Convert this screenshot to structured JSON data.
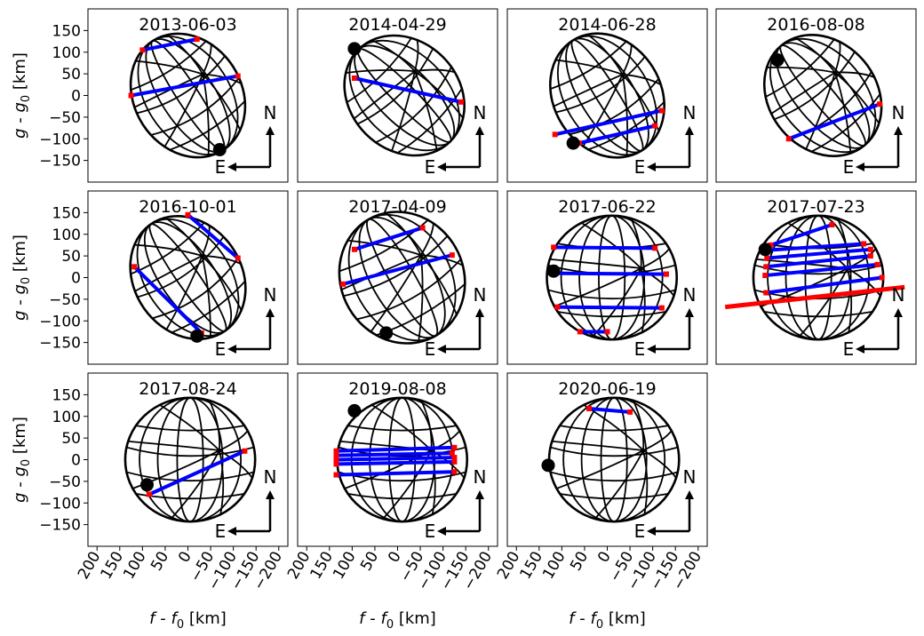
{
  "figure": {
    "ylabel_parts": {
      "v": "g",
      "mid": " - ",
      "v0": "g",
      "sub": "0",
      "unit": " [km]"
    },
    "xlabel_parts": {
      "v": "f",
      "mid": " - ",
      "v0": "f",
      "sub": "0",
      "unit": " [km]"
    },
    "compass": {
      "north": "N",
      "east": "E"
    }
  },
  "chart_data": {
    "type": "scatter",
    "description_units": "km",
    "xlim": [
      220,
      -220
    ],
    "ylim": [
      -200,
      200
    ],
    "xticks": [
      200,
      150,
      100,
      50,
      0,
      -50,
      -100,
      -150,
      -200
    ],
    "xtick_labels": [
      "200",
      "150",
      "100",
      "50",
      "0",
      "−50",
      "−100",
      "−150",
      "−200"
    ],
    "yticks": [
      150,
      100,
      50,
      0,
      -50,
      -100,
      -150
    ],
    "ytick_labels": [
      "150",
      "100",
      "50",
      "0",
      "−50",
      "−100",
      "−150"
    ],
    "colors": {
      "outline": "#000000",
      "chord": "#0000ff",
      "chord_end": "#ff0000",
      "pole": "#000000"
    },
    "panels": [
      {
        "title": "2013-06-03",
        "a": 118,
        "b": 150,
        "rot": 33,
        "pole": [
          -70,
          -125
        ],
        "center": [
          0,
          0
        ],
        "chords": [
          [
            100,
            105,
            -20,
            130
          ],
          [
            125,
            0,
            -110,
            45
          ]
        ],
        "grazing": []
      },
      {
        "title": "2014-04-29",
        "a": 120,
        "b": 150,
        "rot": 45,
        "pole": [
          95,
          108
        ],
        "center": [
          -15,
          0
        ],
        "chords": [
          [
            95,
            40,
            -140,
            -15
          ]
        ],
        "grazing": []
      },
      {
        "title": "2014-06-28",
        "a": 118,
        "b": 150,
        "rot": 32,
        "pole": [
          75,
          -110
        ],
        "center": [
          0,
          0
        ],
        "chords": [
          [
            62,
            -110,
            -105,
            -70
          ],
          [
            115,
            -90,
            -120,
            -35
          ]
        ],
        "grazing": []
      },
      {
        "title": "2016-08-08",
        "a": 118,
        "b": 150,
        "rot": 40,
        "pole": [
          85,
          82
        ],
        "center": [
          -15,
          0
        ],
        "chords": [
          [
            60,
            -100,
            -140,
            -20
          ]
        ],
        "grazing": []
      },
      {
        "title": "2016-10-01",
        "a": 118,
        "b": 150,
        "rot": 35,
        "pole": [
          -20,
          -135
        ],
        "center": [
          0,
          0
        ],
        "chords": [
          [
            0,
            145,
            -110,
            45
          ],
          [
            118,
            25,
            -30,
            -128
          ]
        ],
        "grazing": []
      },
      {
        "title": "2017-04-09",
        "a": 135,
        "b": 155,
        "rot": 30,
        "pole": [
          25,
          -128
        ],
        "center": [
          -10,
          0
        ],
        "chords": [
          [
            95,
            65,
            -55,
            115
          ],
          [
            120,
            -15,
            -120,
            52
          ]
        ],
        "grazing": []
      },
      {
        "title": "2017-06-22",
        "a": 143,
        "b": 143,
        "rot": 0,
        "pole": [
          118,
          15
        ],
        "center": [
          -10,
          0
        ],
        "chords": [
          [
            118,
            70,
            -105,
            68
          ],
          [
            120,
            10,
            -130,
            8
          ],
          [
            110,
            -68,
            -120,
            -70
          ],
          [
            60,
            -125,
            0,
            -125
          ]
        ],
        "grazing": []
      },
      {
        "title": "2017-07-23",
        "a": 143,
        "b": 143,
        "rot": 0,
        "pole": [
          112,
          65
        ],
        "center": [
          -5,
          0
        ],
        "chords": [
          [
            100,
            75,
            -35,
            122
          ],
          [
            110,
            63,
            -105,
            78
          ],
          [
            108,
            45,
            -120,
            65
          ],
          [
            110,
            25,
            -120,
            50
          ],
          [
            112,
            5,
            -135,
            30
          ],
          [
            110,
            -35,
            -145,
            0
          ]
        ],
        "grazing": [
          [
            200,
            -68,
            -195,
            -22
          ]
        ]
      },
      {
        "title": "2017-08-24",
        "a": 143,
        "b": 143,
        "rot": 0,
        "pole": [
          90,
          -58
        ],
        "center": [
          -5,
          0
        ],
        "chords": [
          [
            85,
            -80,
            -125,
            20
          ]
        ],
        "grazing": []
      },
      {
        "title": "2019-08-08",
        "a": 143,
        "b": 143,
        "rot": 0,
        "pole": [
          95,
          113
        ],
        "center": [
          -10,
          0
        ],
        "chords": [
          [
            135,
            20,
            -125,
            28
          ],
          [
            135,
            10,
            -120,
            15
          ],
          [
            135,
            0,
            -125,
            5
          ],
          [
            135,
            -10,
            -125,
            -5
          ],
          [
            135,
            -35,
            -125,
            -28
          ]
        ],
        "grazing": []
      },
      {
        "title": "2020-06-19",
        "a": 143,
        "b": 143,
        "rot": 0,
        "pole": [
          130,
          -13
        ],
        "center": [
          -15,
          0
        ],
        "chords": [
          [
            40,
            118,
            -50,
            110
          ]
        ],
        "grazing": []
      }
    ]
  }
}
